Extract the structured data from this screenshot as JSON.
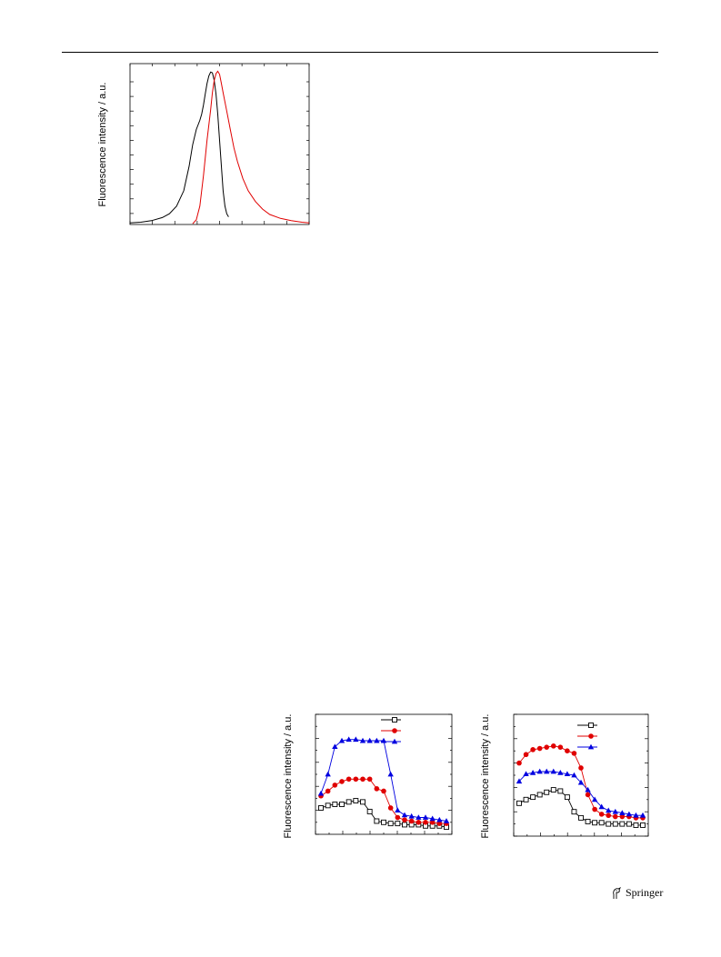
{
  "footer": {
    "publisher": "Springer",
    "logo_icon": "springer-horse-icon"
  },
  "chart_data": [
    {
      "type": "line",
      "ylabel": "Fluorescence intensity / a.u.",
      "xlim": [
        0,
        100
      ],
      "ylim": [
        0,
        1.05
      ],
      "series": [
        {
          "color": "#000000",
          "points": [
            [
              0,
              0.01
            ],
            [
              6,
              0.015
            ],
            [
              12,
              0.025
            ],
            [
              18,
              0.045
            ],
            [
              22,
              0.07
            ],
            [
              26,
              0.12
            ],
            [
              30,
              0.22
            ],
            [
              33,
              0.38
            ],
            [
              35,
              0.52
            ],
            [
              37,
              0.62
            ],
            [
              39,
              0.68
            ],
            [
              40,
              0.72
            ],
            [
              41,
              0.78
            ],
            [
              42,
              0.85
            ],
            [
              43,
              0.92
            ],
            [
              44,
              0.97
            ],
            [
              45,
              0.995
            ],
            [
              46,
              0.99
            ],
            [
              47,
              0.94
            ],
            [
              48,
              0.85
            ],
            [
              49,
              0.72
            ],
            [
              50,
              0.55
            ],
            [
              51,
              0.38
            ],
            [
              52,
              0.22
            ],
            [
              53,
              0.12
            ],
            [
              54,
              0.07
            ],
            [
              55,
              0.05
            ]
          ]
        },
        {
          "color": "#e00000",
          "points": [
            [
              35,
              0.005
            ],
            [
              37,
              0.03
            ],
            [
              39,
              0.12
            ],
            [
              41,
              0.32
            ],
            [
              43,
              0.55
            ],
            [
              45,
              0.75
            ],
            [
              46,
              0.86
            ],
            [
              47,
              0.94
            ],
            [
              48,
              0.985
            ],
            [
              49,
              1.0
            ],
            [
              50,
              0.98
            ],
            [
              51,
              0.92
            ],
            [
              52,
              0.86
            ],
            [
              54,
              0.74
            ],
            [
              56,
              0.62
            ],
            [
              58,
              0.5
            ],
            [
              60,
              0.41
            ],
            [
              63,
              0.3
            ],
            [
              66,
              0.22
            ],
            [
              70,
              0.15
            ],
            [
              74,
              0.1
            ],
            [
              78,
              0.065
            ],
            [
              84,
              0.04
            ],
            [
              90,
              0.025
            ],
            [
              96,
              0.015
            ],
            [
              100,
              0.01
            ]
          ]
        }
      ]
    },
    {
      "type": "line",
      "ylabel": "Fluorescence intensity / a.u.",
      "xlim": [
        0,
        20
      ],
      "ylim": [
        0,
        100
      ],
      "series": [
        {
          "color": "#000000",
          "marker": "square-open",
          "values": [
            22,
            24,
            25,
            25,
            27,
            28,
            27,
            19,
            11,
            10,
            9,
            9,
            8,
            8,
            8,
            7,
            7,
            7,
            6
          ]
        },
        {
          "color": "#e00000",
          "marker": "circle-filled",
          "values": [
            32,
            36,
            41,
            44,
            46,
            46,
            46,
            46,
            38,
            36,
            22,
            14,
            12,
            11,
            10,
            10,
            10,
            9,
            9
          ]
        },
        {
          "color": "#0000e0",
          "marker": "triangle-filled",
          "values": [
            34,
            50,
            73,
            78,
            79,
            79,
            78,
            78,
            78,
            78,
            50,
            20,
            16,
            15,
            14,
            14,
            13,
            12,
            11
          ]
        }
      ]
    },
    {
      "type": "line",
      "ylabel": "Fluorescence intensity / a.u.",
      "xlim": [
        0,
        20
      ],
      "ylim": [
        0,
        100
      ],
      "series": [
        {
          "color": "#000000",
          "marker": "square-open",
          "values": [
            27,
            30,
            32,
            34,
            36,
            38,
            37,
            32,
            20,
            15,
            12,
            11,
            11,
            10,
            10,
            10,
            10,
            9,
            9
          ]
        },
        {
          "color": "#e00000",
          "marker": "circle-filled",
          "values": [
            60,
            67,
            71,
            72,
            73,
            74,
            73,
            70,
            68,
            56,
            34,
            22,
            18,
            17,
            16,
            16,
            16,
            15,
            15
          ]
        },
        {
          "color": "#0000e0",
          "marker": "triangle-filled",
          "values": [
            45,
            51,
            52,
            53,
            53,
            53,
            52,
            51,
            50,
            44,
            38,
            30,
            24,
            21,
            20,
            19,
            18,
            17,
            17
          ]
        }
      ]
    }
  ]
}
